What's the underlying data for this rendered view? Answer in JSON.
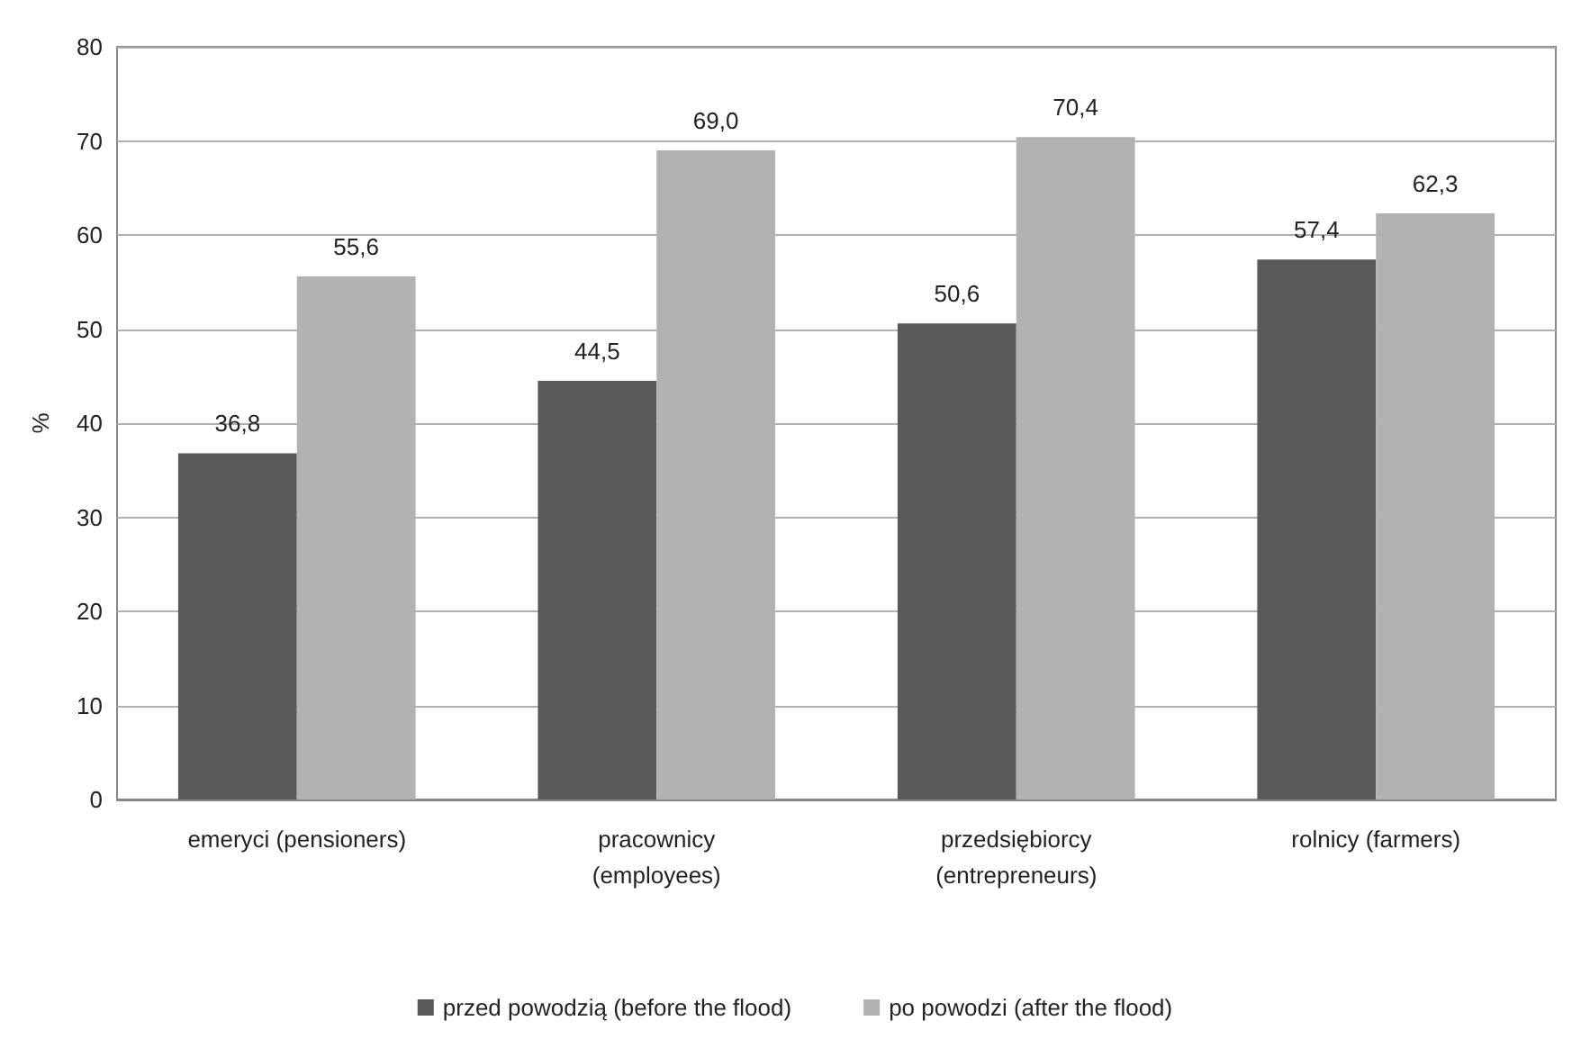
{
  "chart_data": {
    "type": "bar",
    "ylabel": "%",
    "categories": [
      "emeryci (pensioners)",
      "pracownicy\n(employees)",
      "przedsiębiorcy\n(entrepreneurs)",
      "rolnicy (farmers)"
    ],
    "series": [
      {
        "name": "przed powodzią (before the flood)",
        "color": "#595959",
        "values": [
          36.8,
          44.5,
          50.6,
          57.4
        ],
        "value_labels": [
          "36,8",
          "44,5",
          "50,6",
          "57,4"
        ]
      },
      {
        "name": "po powodzi (after the flood)",
        "color": "#b2b2b2",
        "values": [
          55.6,
          69.0,
          70.4,
          62.3
        ],
        "value_labels": [
          "55,6",
          "69,0",
          "70,4",
          "62,3"
        ]
      }
    ],
    "ylim": [
      0,
      80
    ],
    "yticks": [
      0,
      10,
      20,
      30,
      40,
      50,
      60,
      70,
      80
    ],
    "grid": "y",
    "legend": "bottom"
  }
}
